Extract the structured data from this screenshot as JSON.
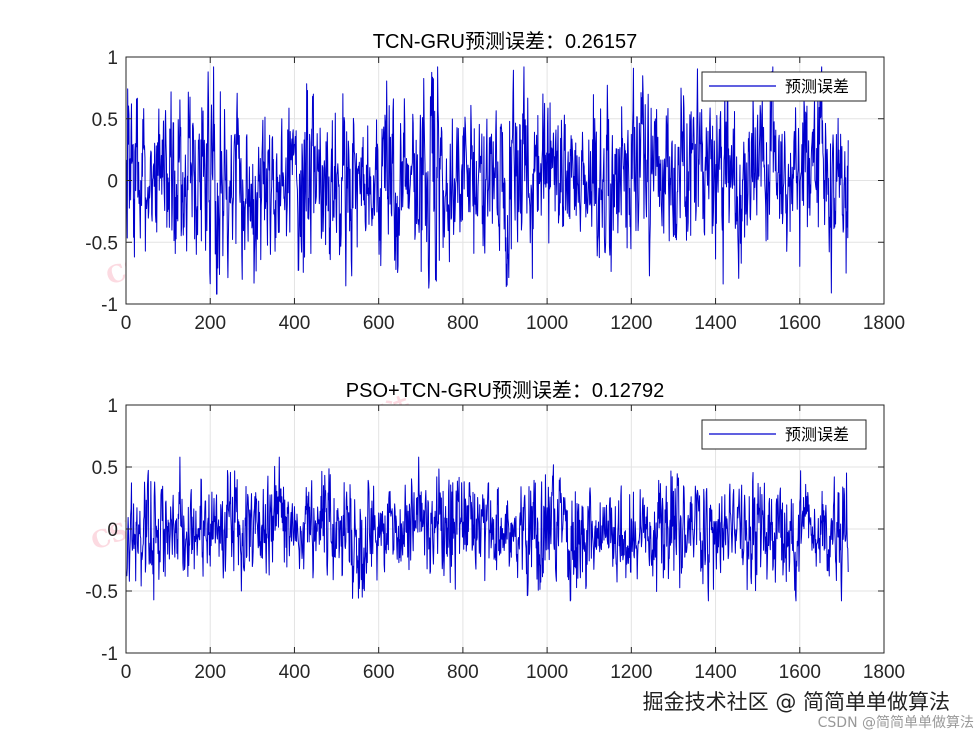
{
  "chart_data": [
    {
      "type": "line",
      "title": "TCN-GRU预测误差：0.26157",
      "xlim": [
        0,
        1800
      ],
      "ylim": [
        -1,
        1
      ],
      "xticks": [
        0,
        200,
        400,
        600,
        800,
        1000,
        1200,
        1400,
        1600,
        1800
      ],
      "yticks": [
        -1,
        -0.5,
        0,
        0.5,
        1
      ],
      "xtick_labels": [
        "0",
        "200",
        "400",
        "600",
        "800",
        "1000",
        "1200",
        "1400",
        "1600",
        "1800"
      ],
      "ytick_labels": [
        "-1",
        "-0.5",
        "0",
        "0.5",
        "1"
      ],
      "grid": true,
      "legend": {
        "position": "top-right",
        "entries": [
          "预测误差"
        ]
      },
      "series": [
        {
          "name": "预测误差",
          "color": "#0000CD",
          "n_points": 1715,
          "amplitude": 0.92,
          "seed": 7
        }
      ]
    },
    {
      "type": "line",
      "title": "PSO+TCN-GRU预测误差：0.12792",
      "xlim": [
        0,
        1800
      ],
      "ylim": [
        -1,
        1
      ],
      "xticks": [
        0,
        200,
        400,
        600,
        800,
        1000,
        1200,
        1400,
        1600,
        1800
      ],
      "yticks": [
        -1,
        -0.5,
        0,
        0.5,
        1
      ],
      "xtick_labels": [
        "0",
        "200",
        "400",
        "600",
        "800",
        "1000",
        "1200",
        "1400",
        "1600",
        "1800"
      ],
      "ytick_labels": [
        "-1",
        "-0.5",
        "0",
        "0.5",
        "1"
      ],
      "grid": true,
      "legend": {
        "position": "top-right",
        "entries": [
          "预测误差"
        ]
      },
      "series": [
        {
          "name": "预测误差",
          "color": "#0000CD",
          "n_points": 1715,
          "amplitude": 0.58,
          "seed": 19
        }
      ]
    }
  ],
  "watermarks": [
    "CSDN博客",
    "简简单单做算法"
  ],
  "footer": {
    "main": "掘金技术社区 @ 简简单单做算法",
    "sub": "CSDN @简简单单做算法"
  }
}
